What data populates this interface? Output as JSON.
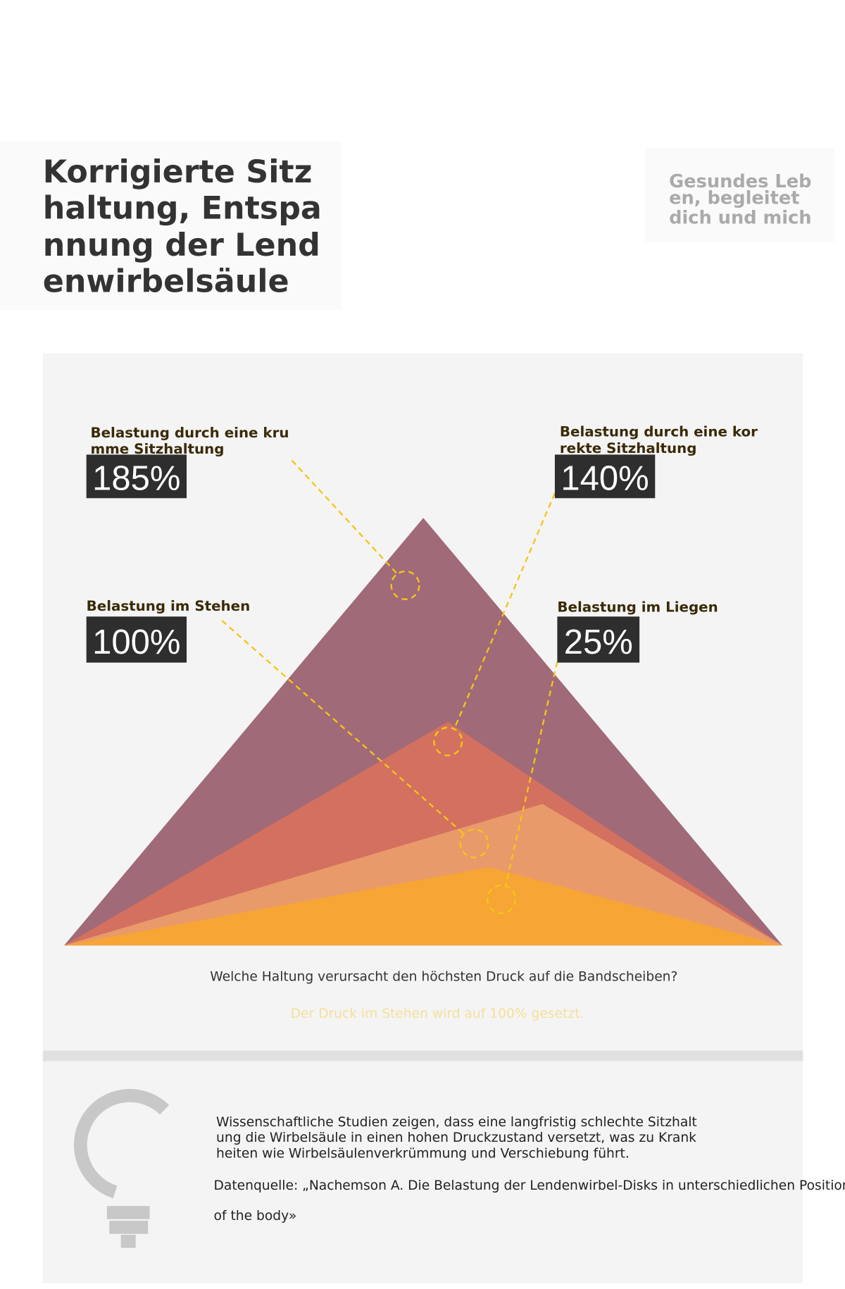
{
  "header": {
    "title_lines": [
      "Korrigierte Sitz",
      "haltung, Entspa",
      "nnung der Lend",
      "enwirbelsäule"
    ],
    "slogan_lines": [
      "Gesundes Leb",
      "en, begleitet",
      "dich und mich"
    ]
  },
  "callouts": [
    {
      "label_lines": [
        "Belastung durch eine kru",
        "mme Sitzhaltung"
      ],
      "value": "185%"
    },
    {
      "label_lines": [
        "Belastung durch eine kor",
        "rekte Sitzhaltung"
      ],
      "value": "140%"
    },
    {
      "label_lines": [
        "Belastung im Stehen"
      ],
      "value": "100%"
    },
    {
      "label_lines": [
        "Belastung im Liegen"
      ],
      "value": "25%"
    }
  ],
  "question": "Welche Haltung verursacht den höchsten Druck auf die Bandscheiben?",
  "note": "Der Druck im Stehen wird auf 100% gesetzt.",
  "footer": {
    "text_lines": [
      "Wissenschaftliche Studien zeigen, dass eine langfristig schlechte Sitzhalt",
      "ung die Wirbelsäule in einen hohen Druckzustand versetzt, was zu Krank",
      "heiten wie Wirbelsäulenverkrümmung und Verschiebung führt."
    ],
    "source_lines": [
      "Datenquelle: „Nachemson A. Die Belastung der Lendenwirbel-Disks in unterschiedlichen Positionen",
      "of the body»"
    ]
  }
}
